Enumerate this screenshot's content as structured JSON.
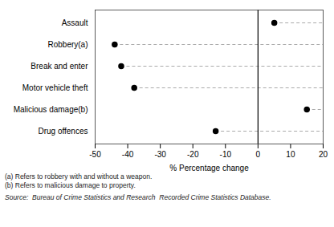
{
  "chart_data": {
    "type": "dot",
    "categories": [
      "Drug offences",
      "Malicious damage(b)",
      "Motor vehicle theft",
      "Break and enter",
      "Robbery(a)",
      "Assault"
    ],
    "values": [
      -13,
      15,
      -38,
      -42,
      -44,
      5
    ],
    "xlim": [
      -50,
      20
    ],
    "xticks": [
      -50,
      -40,
      -30,
      -20,
      -10,
      0,
      10,
      20
    ],
    "xlabel": "% Percentage change",
    "color": "#000000",
    "line_style": "dashed",
    "vline_x": 0,
    "notes": [
      "(a) Refers to robbery with and without a weapon.",
      "(b) Refers to malicious damage to property."
    ],
    "source": "Source:  Bureau of Crime Statistics and Research  Recorded Crime Statistics Database."
  }
}
